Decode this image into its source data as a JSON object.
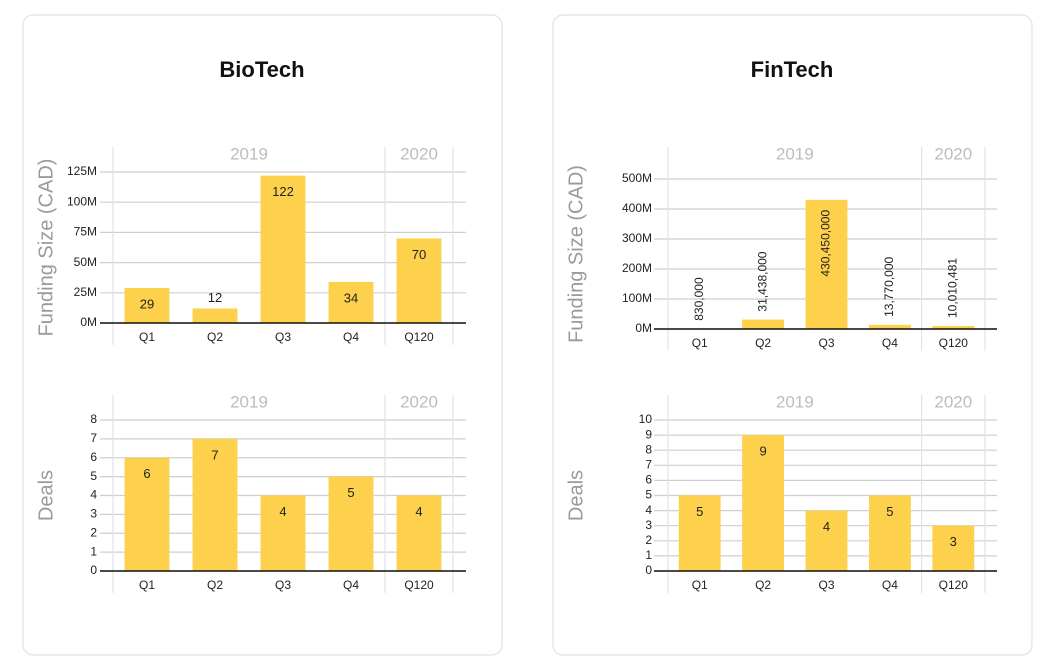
{
  "cards": [
    {
      "title": "BioTech"
    },
    {
      "title": "FinTech"
    }
  ],
  "chart_data": [
    {
      "type": "bar",
      "y_label": "Funding Size (CAD)",
      "color": "#fdd14b",
      "grid": true,
      "categories": [
        "Q1",
        "Q2",
        "Q3",
        "Q4",
        "Q120"
      ],
      "category_groups": [
        "2019",
        "2019",
        "2019",
        "2019",
        "2020"
      ],
      "values": [
        29,
        12,
        122,
        34,
        70
      ],
      "ylim": [
        0,
        125
      ],
      "yticks": [
        {
          "value": 0,
          "label": "0M"
        },
        {
          "value": 25,
          "label": "25M"
        },
        {
          "value": 50,
          "label": "50M"
        },
        {
          "value": 75,
          "label": "75M"
        },
        {
          "value": 100,
          "label": "100M"
        },
        {
          "value": 125,
          "label": "125M"
        }
      ]
    },
    {
      "type": "bar",
      "y_label": "Deals",
      "color": "#fdd14b",
      "grid": true,
      "categories": [
        "Q1",
        "Q2",
        "Q3",
        "Q4",
        "Q120"
      ],
      "category_groups": [
        "2019",
        "2019",
        "2019",
        "2019",
        "2020"
      ],
      "values": [
        6,
        7,
        4,
        5,
        4
      ],
      "ylim": [
        0,
        8
      ],
      "yticks": [
        0,
        1,
        2,
        3,
        4,
        5,
        6,
        7,
        8
      ]
    },
    {
      "type": "bar",
      "y_label": "Funding Size (CAD)",
      "color": "#fdd14b",
      "grid": true,
      "value_label_orientation": "vertical",
      "categories": [
        "Q1",
        "Q2",
        "Q3",
        "Q4",
        "Q120"
      ],
      "category_groups": [
        "2019",
        "2019",
        "2019",
        "2019",
        "2020"
      ],
      "values": [
        0.83,
        31.438,
        430.45,
        13.77,
        10.010481
      ],
      "value_labels": [
        "830,000",
        "31,438,000",
        "430,450,000",
        "13,770,000",
        "10,010,481"
      ],
      "ylim": [
        0,
        500
      ],
      "yticks": [
        {
          "value": 0,
          "label": "0M"
        },
        {
          "value": 100,
          "label": "100M"
        },
        {
          "value": 200,
          "label": "200M"
        },
        {
          "value": 300,
          "label": "300M"
        },
        {
          "value": 400,
          "label": "400M"
        },
        {
          "value": 500,
          "label": "500M"
        }
      ]
    },
    {
      "type": "bar",
      "y_label": "Deals",
      "color": "#fdd14b",
      "grid": true,
      "categories": [
        "Q1",
        "Q2",
        "Q3",
        "Q4",
        "Q120"
      ],
      "category_groups": [
        "2019",
        "2019",
        "2019",
        "2019",
        "2020"
      ],
      "values": [
        5,
        9,
        4,
        5,
        3
      ],
      "ylim": [
        0,
        10
      ],
      "yticks": [
        0,
        1,
        2,
        3,
        4,
        5,
        6,
        7,
        8,
        9,
        10
      ]
    }
  ]
}
